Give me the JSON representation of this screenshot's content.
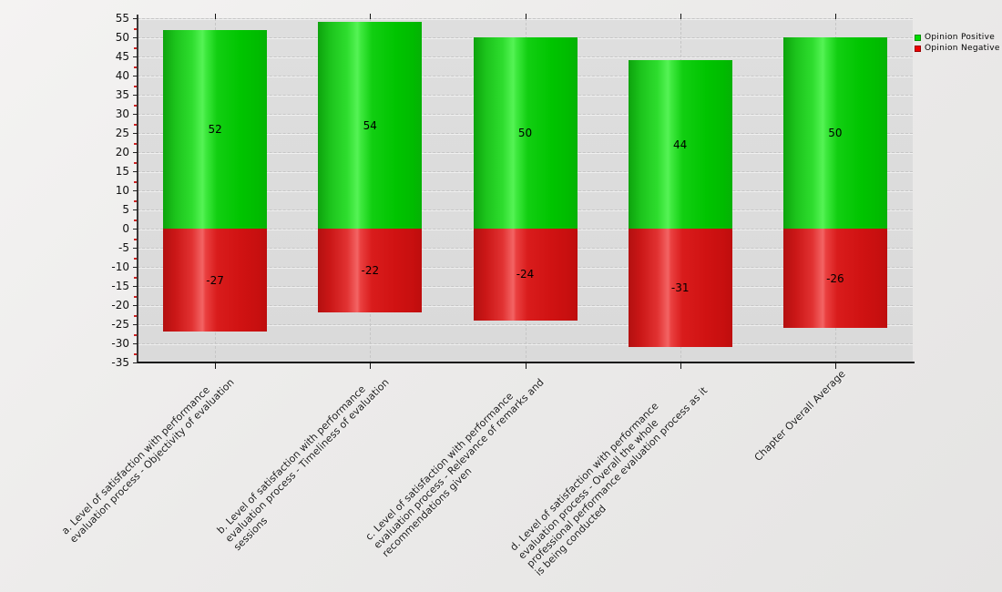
{
  "chart_data": {
    "type": "bar",
    "title": "",
    "xlabel": "",
    "ylabel": "",
    "categories": [
      "a. Level of satisfaction with performance\nevaluation process - Objectivity of evaluation",
      "b. Level of satisfaction with performance\nevaluation process - Timeliness of evaluation\nsessions",
      "c. Level of satisfaction with performance\nevaluation process - Relevance of remarks and\nrecommendations given",
      "d. Level of satisfaction with performance\nevaluation process - Overall the whole\nprofessional performance evaluation process as it\nis being conducted",
      "Chapter Overall Average"
    ],
    "series": [
      {
        "name": "Opinion Positive",
        "color": "#00dd00",
        "values": [
          52,
          54,
          50,
          44,
          50
        ]
      },
      {
        "name": "Opinion Negative",
        "color": "#ee0000",
        "values": [
          -27,
          -22,
          -24,
          -31,
          -26
        ]
      }
    ],
    "ylim": [
      -35,
      55
    ],
    "ytick_step": 5,
    "grid": true,
    "legend_position": "top-right",
    "axis": {
      "minor_tick_color": "#cc2222",
      "axis_color": "#111111"
    }
  }
}
